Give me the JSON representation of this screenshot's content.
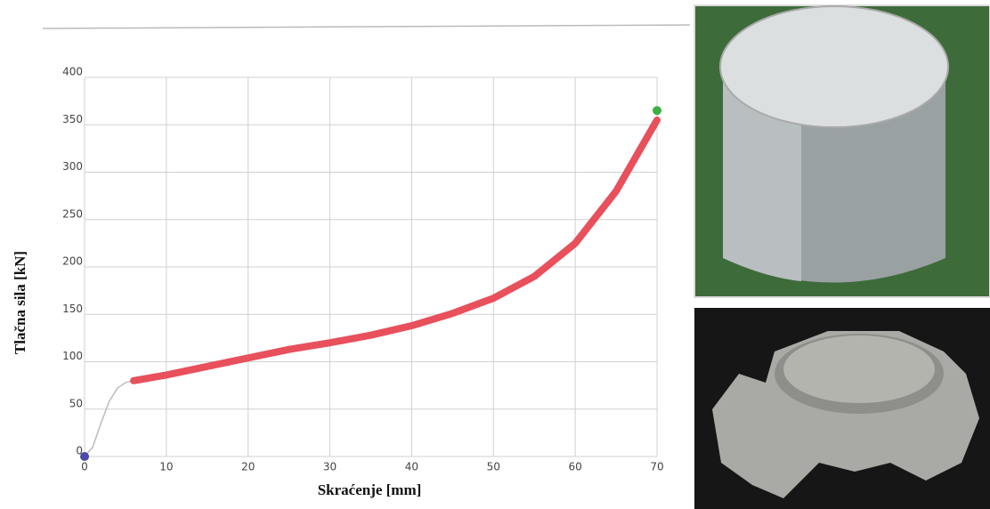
{
  "chart_data": {
    "type": "line",
    "x_label": "Skraćenje [mm]",
    "y_label": "Tlačna sila [kN]",
    "xlim": [
      0,
      70
    ],
    "ylim": [
      0,
      400
    ],
    "xticks": [
      0,
      10,
      20,
      30,
      40,
      50,
      60,
      70
    ],
    "yticks": [
      0,
      50,
      100,
      150,
      200,
      250,
      300,
      350,
      400
    ],
    "grid": true,
    "series": [
      {
        "color": "#bbbbbb",
        "width": 1.5,
        "x": [
          0,
          1,
          2,
          3,
          4,
          5,
          6
        ],
        "values": [
          0,
          10,
          35,
          58,
          72,
          78,
          80
        ]
      },
      {
        "color": "#e8505b",
        "width": 8,
        "x": [
          6,
          10,
          15,
          20,
          25,
          30,
          35,
          40,
          45,
          50,
          55,
          60,
          65,
          70
        ],
        "values": [
          80,
          86,
          95,
          104,
          113,
          120,
          128,
          138,
          151,
          167,
          190,
          225,
          280,
          355
        ]
      }
    ],
    "points": [
      {
        "color": "#4a4aa8",
        "x": 0,
        "y": 0
      },
      {
        "color": "#3cb043",
        "x": 70,
        "y": 365
      }
    ]
  }
}
